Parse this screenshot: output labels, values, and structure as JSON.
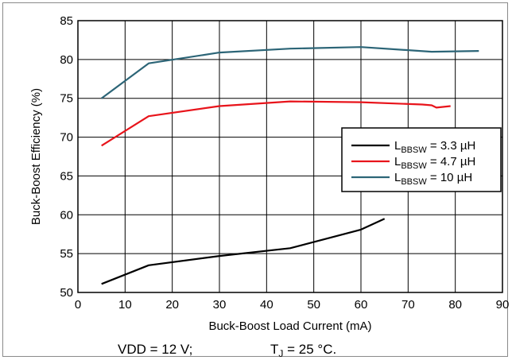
{
  "chart_data": {
    "type": "line",
    "xlabel": "Buck-Boost Load Current (mA)",
    "ylabel": "Buck-Boost Efficiency (%)",
    "xlim": [
      0,
      90
    ],
    "ylim": [
      50,
      85
    ],
    "x_ticks": [
      "0",
      "10",
      "20",
      "30",
      "40",
      "50",
      "60",
      "70",
      "80",
      "90"
    ],
    "y_ticks": [
      "50",
      "55",
      "60",
      "65",
      "70",
      "75",
      "80",
      "85"
    ],
    "grid": true,
    "legend_position": "right",
    "series": [
      {
        "name_main": "L",
        "name_sub": "BBSW",
        "name_rest": " = 3.3 µH",
        "color": "#000000",
        "points": [
          [
            5,
            51.1
          ],
          [
            15,
            53.5
          ],
          [
            30,
            54.7
          ],
          [
            45,
            55.7
          ],
          [
            60,
            58.1
          ],
          [
            65,
            59.5
          ]
        ]
      },
      {
        "name_main": "L",
        "name_sub": "BBSW",
        "name_rest": " = 4.7 µH",
        "color": "#e8141b",
        "points": [
          [
            5,
            68.9
          ],
          [
            15,
            72.7
          ],
          [
            30,
            74.0
          ],
          [
            45,
            74.6
          ],
          [
            60,
            74.5
          ],
          [
            73,
            74.2
          ],
          [
            75,
            74.1
          ],
          [
            76,
            73.8
          ],
          [
            79,
            74.0
          ]
        ]
      },
      {
        "name_main": "L",
        "name_sub": "BBSW",
        "name_rest": " = 10 µH",
        "color": "#2c6577",
        "points": [
          [
            5,
            75.0
          ],
          [
            15,
            79.5
          ],
          [
            30,
            80.9
          ],
          [
            45,
            81.4
          ],
          [
            60,
            81.6
          ],
          [
            75,
            81.0
          ],
          [
            85,
            81.1
          ]
        ]
      }
    ],
    "caption": {
      "vdd": "VDD = 12 V;",
      "tj_main": "T",
      "tj_sub": "J",
      "tj_rest": " = 25 °C."
    }
  }
}
